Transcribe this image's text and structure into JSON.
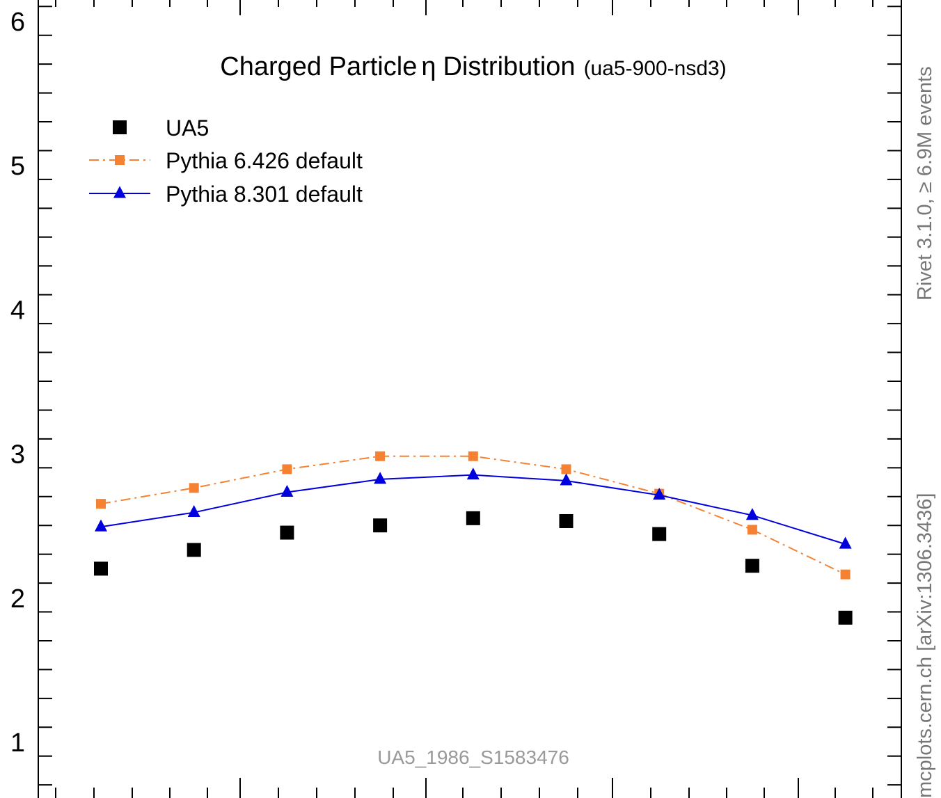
{
  "chart_data": {
    "type": "scatter",
    "title": "Charged Particle",
    "title_symbol": "η",
    "title_suffix": "Distribution",
    "subtitle": "(ua5-900-nsd3)",
    "analysis_label": "UA5_1986_S1583476",
    "side_label_top": "Rivet 3.1.0, ≥ 6.9M events",
    "side_label_bottom": "mcplots.cern.ch [arXiv:1306.3436]",
    "ylim": [
      0.7,
      6.05
    ],
    "y_ticks": [
      1,
      2,
      3,
      4,
      5,
      6
    ],
    "y_tick_labels": [
      "1",
      "2",
      "3",
      "4",
      "5",
      "6"
    ],
    "grid": false,
    "legend_position": "top-left",
    "x": [
      1,
      2,
      3,
      4,
      5,
      6,
      7,
      8,
      9
    ],
    "series": [
      {
        "name": "UA5",
        "style": "markers",
        "marker": "square",
        "color": "#000000",
        "values": [
          2.2,
          2.33,
          2.45,
          2.5,
          2.55,
          2.53,
          2.44,
          2.22,
          1.86
        ]
      },
      {
        "name": "Pythia 6.426 default",
        "style": "dashdot",
        "marker": "square",
        "color": "#f58232",
        "values": [
          2.65,
          2.76,
          2.89,
          2.98,
          2.98,
          2.89,
          2.72,
          2.47,
          2.16
        ]
      },
      {
        "name": "Pythia 8.301 default",
        "style": "solid",
        "marker": "triangle",
        "color": "#0000dd",
        "values": [
          2.49,
          2.59,
          2.73,
          2.82,
          2.85,
          2.81,
          2.71,
          2.57,
          2.37
        ]
      }
    ]
  }
}
